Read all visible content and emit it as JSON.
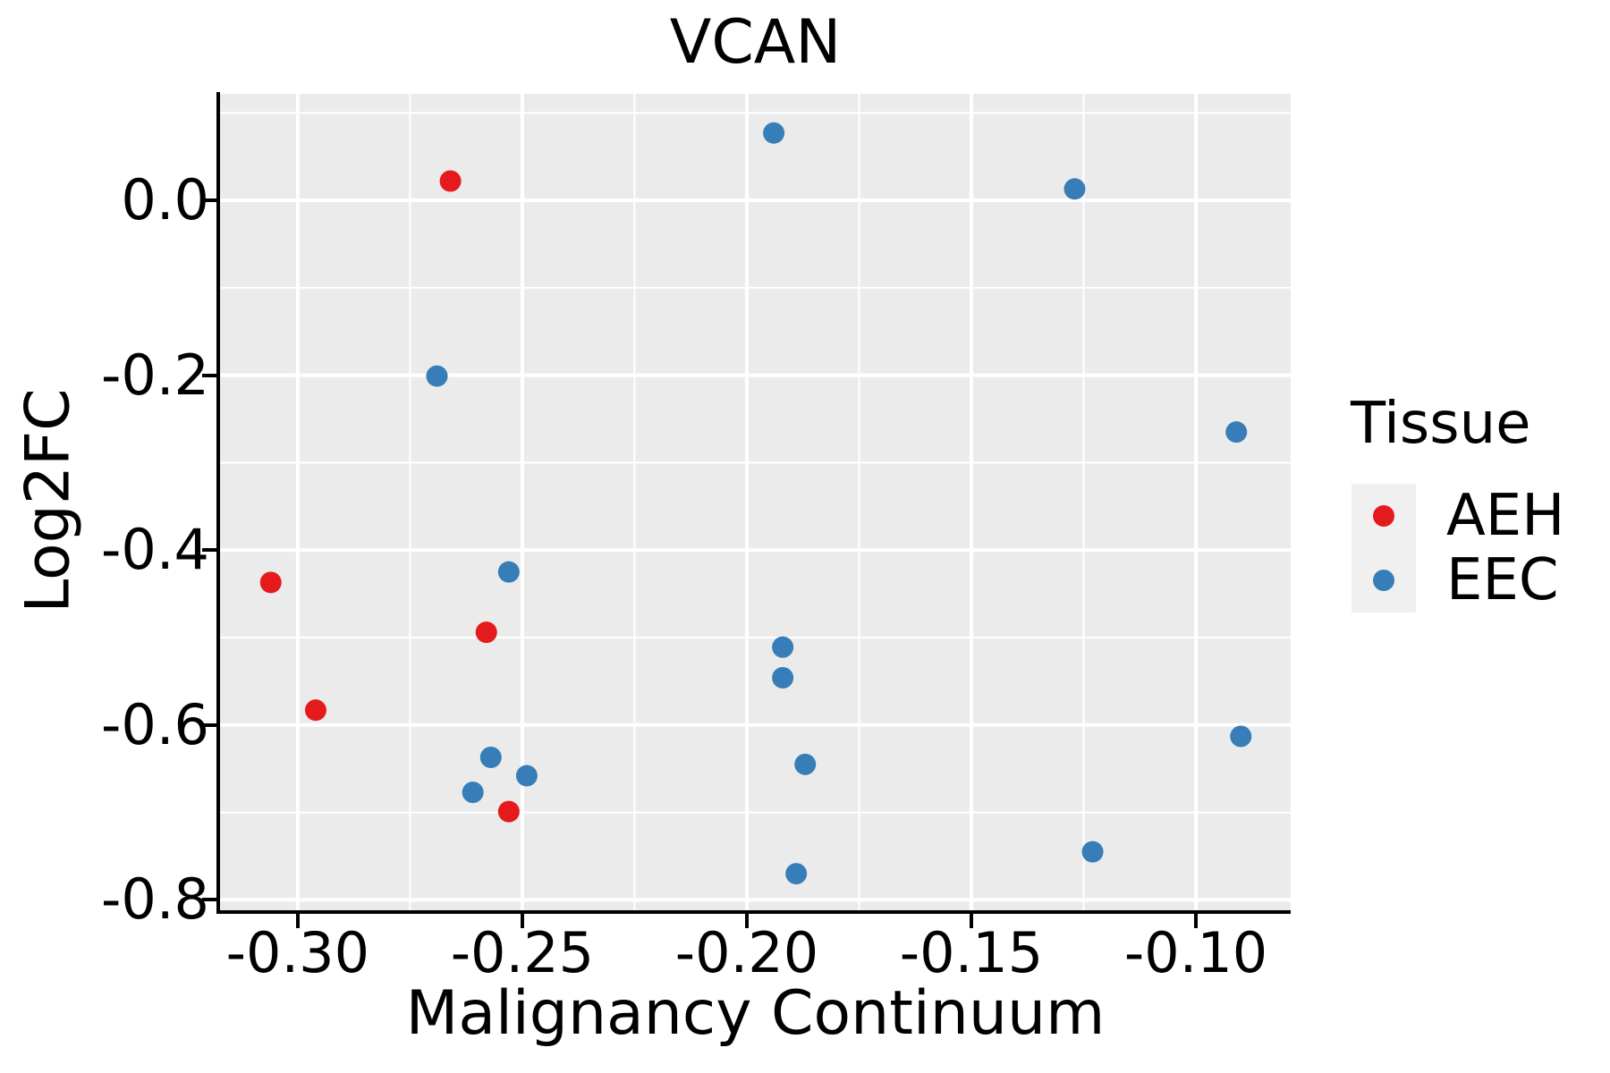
{
  "figure": {
    "title": "VCAN",
    "x_axis_title": "Malignancy Continuum",
    "y_axis_title": "Log2FC",
    "legend_title": "Tissue"
  },
  "style": {
    "panel_bg": "#EBEBEB",
    "grid_color": "#FFFFFF",
    "legend_key_bg": "#F0F0F0",
    "axis_color": "#000000",
    "text_color": "#000000",
    "aeh_color": "#E41A1C",
    "eec_color": "#377EB8"
  },
  "chart_data": {
    "type": "scatter",
    "title": "VCAN",
    "xlabel": "Malignancy Continuum",
    "ylabel": "Log2FC",
    "xlim": [
      -0.3173,
      -0.0789
    ],
    "ylim": [
      -0.8139,
      0.1217
    ],
    "grid": true,
    "legend_position": "right",
    "legend_title": "Tissue",
    "x_major_ticks": [
      -0.3,
      -0.25,
      -0.2,
      -0.15,
      -0.1
    ],
    "x_tick_labels": [
      "-0.30",
      "-0.25",
      "-0.20",
      "-0.15",
      "-0.10"
    ],
    "x_minor_ticks": [
      -0.275,
      -0.225,
      -0.175,
      -0.125
    ],
    "y_major_ticks": [
      0.0,
      -0.2,
      -0.4,
      -0.6,
      -0.8
    ],
    "y_tick_labels": [
      "0.0",
      "-0.2",
      "-0.4",
      "-0.6",
      "-0.8"
    ],
    "y_minor_ticks": [
      0.1,
      -0.1,
      -0.3,
      -0.5,
      -0.7
    ],
    "point_radius_px": 12,
    "series": [
      {
        "name": "AEH",
        "color": "#E41A1C",
        "points": [
          [
            -0.266,
            0.022
          ],
          [
            -0.306,
            -0.437
          ],
          [
            -0.258,
            -0.494
          ],
          [
            -0.296,
            -0.583
          ],
          [
            -0.253,
            -0.699
          ]
        ]
      },
      {
        "name": "EEC",
        "color": "#377EB8",
        "points": [
          [
            -0.194,
            0.077
          ],
          [
            -0.127,
            0.013
          ],
          [
            -0.269,
            -0.201
          ],
          [
            -0.091,
            -0.265
          ],
          [
            -0.253,
            -0.425
          ],
          [
            -0.192,
            -0.511
          ],
          [
            -0.192,
            -0.546
          ],
          [
            -0.09,
            -0.613
          ],
          [
            -0.257,
            -0.637
          ],
          [
            -0.249,
            -0.658
          ],
          [
            -0.261,
            -0.677
          ],
          [
            -0.187,
            -0.645
          ],
          [
            -0.189,
            -0.77
          ],
          [
            -0.123,
            -0.745
          ]
        ]
      }
    ]
  }
}
